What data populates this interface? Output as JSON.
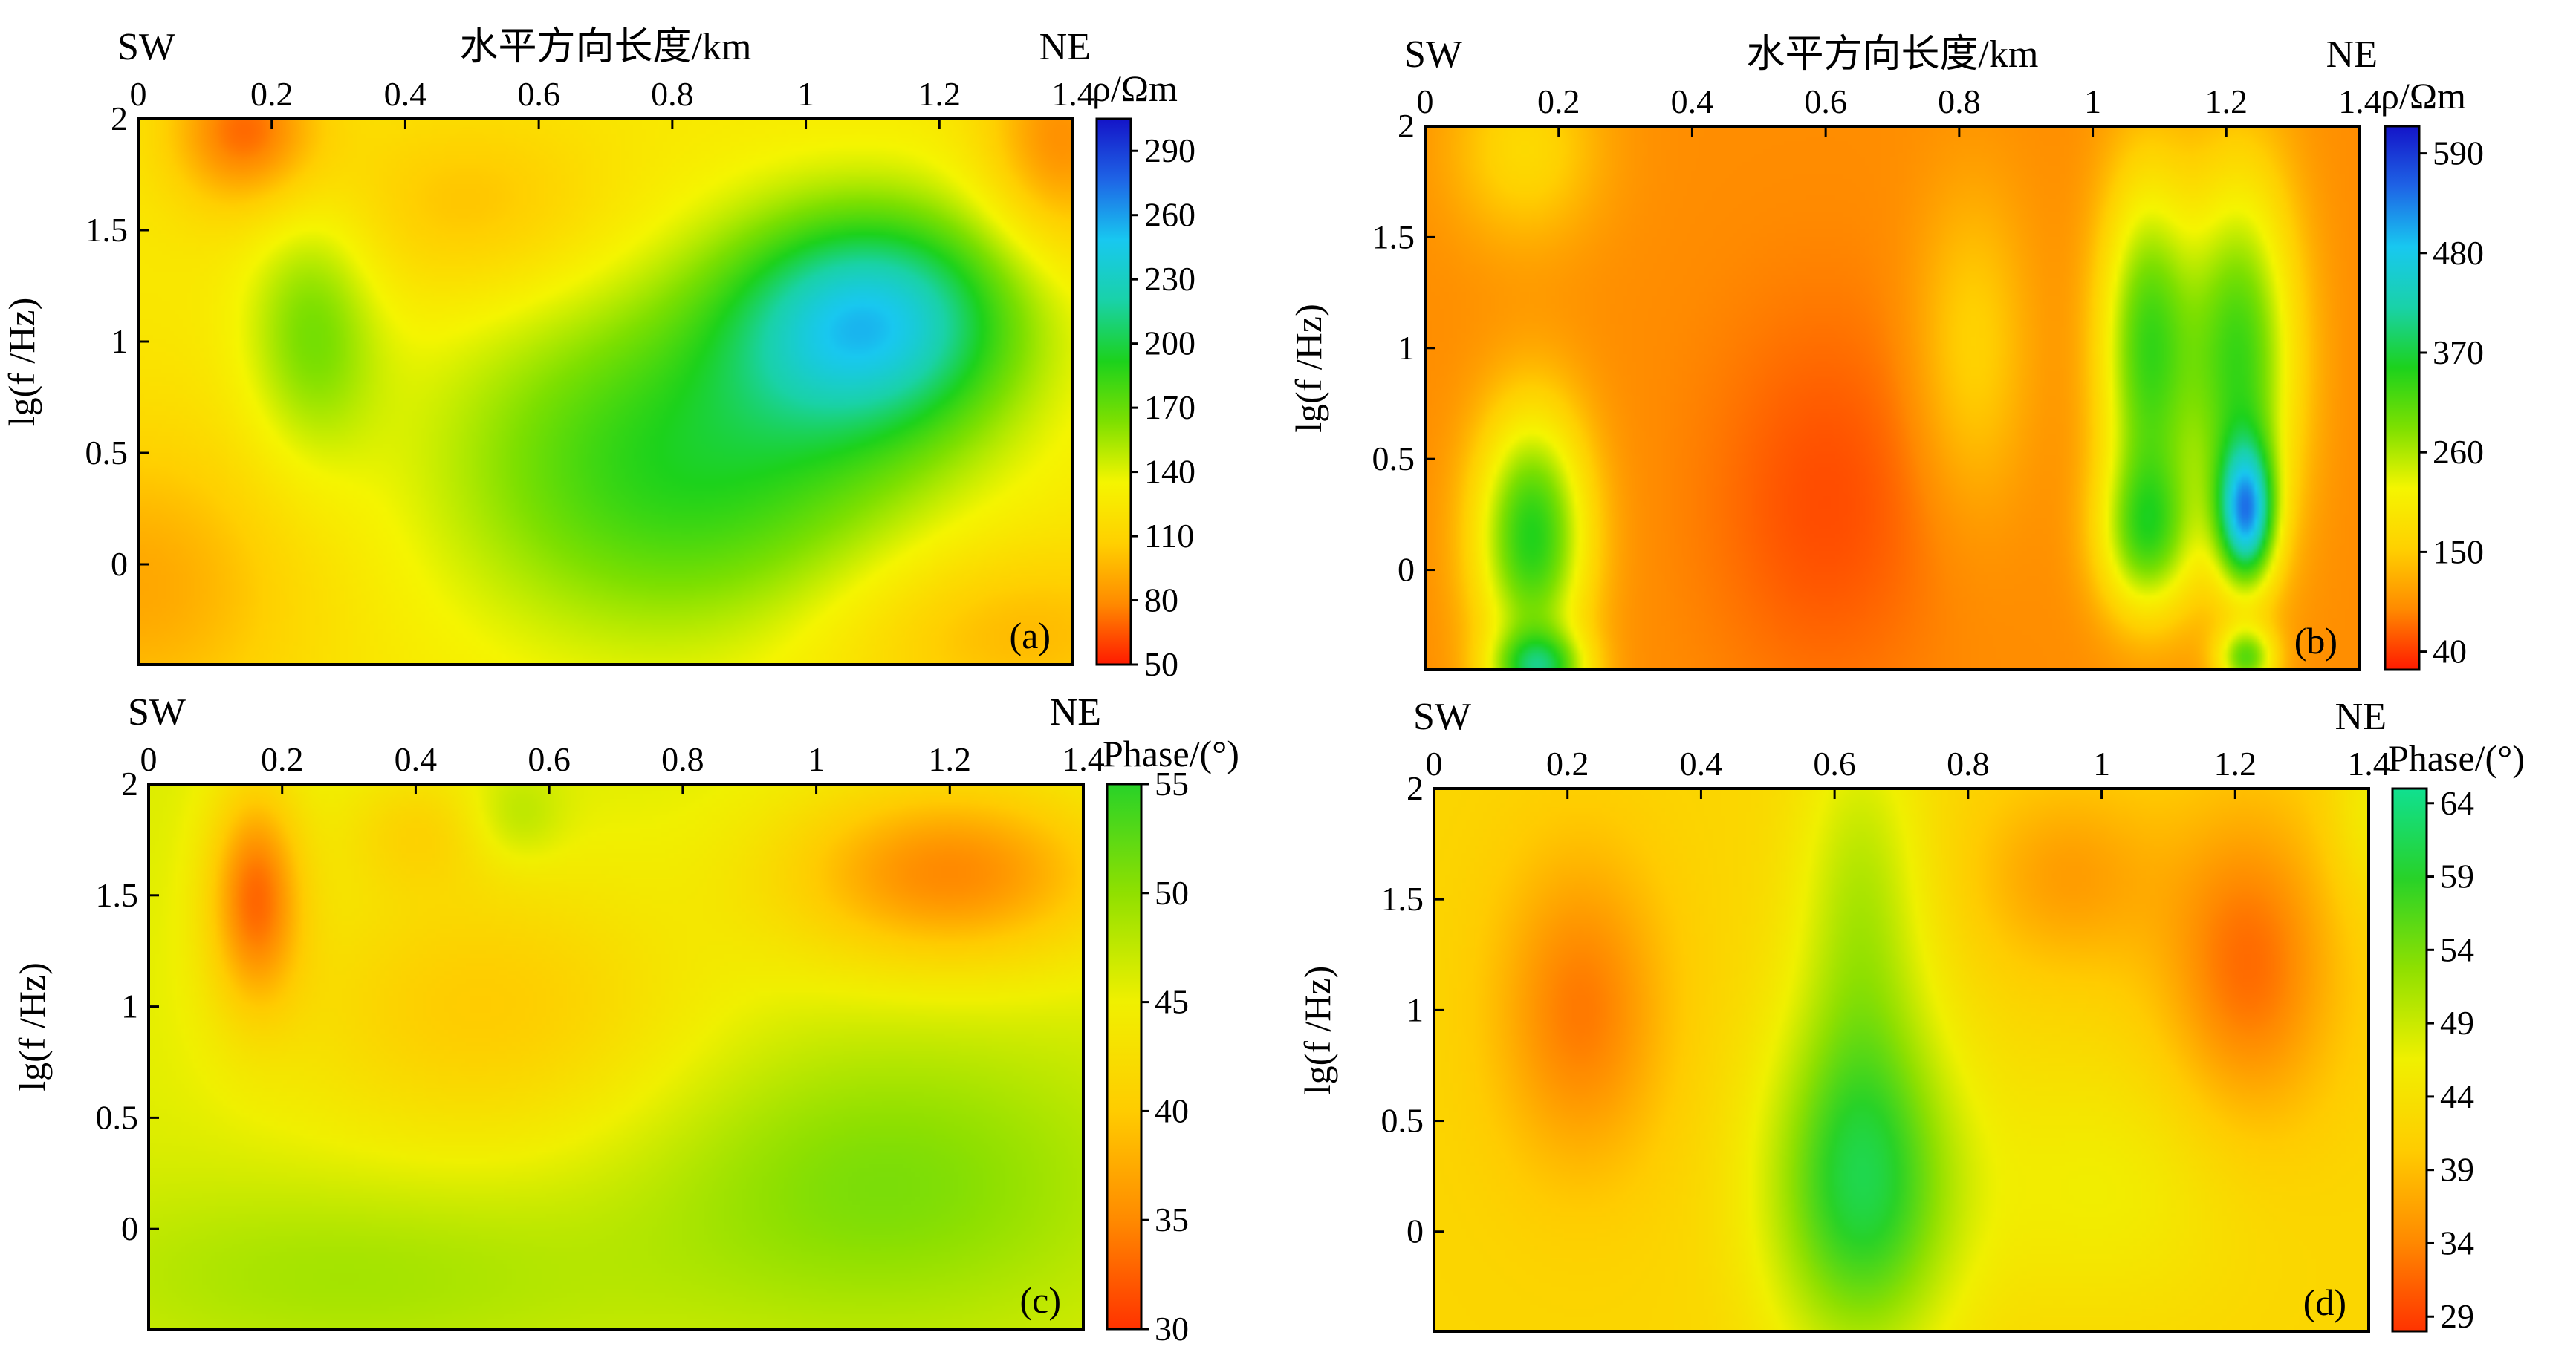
{
  "shared": {
    "top_axis_title": "水平方向长度/km",
    "sw": "SW",
    "ne": "NE",
    "ylabel": "lg(f /Hz)"
  },
  "chart_data": [
    {
      "id": "a",
      "type": "heatmap",
      "panel_label": "(a)",
      "show_top_title": true,
      "colorbar_title": "ρ/Ωm",
      "xlim": [
        0,
        1.4
      ],
      "ylim": [
        -0.45,
        2.0
      ],
      "xticks": [
        0,
        0.2,
        0.4,
        0.6,
        0.8,
        1,
        1.2,
        1.4
      ],
      "xtick_labels": [
        "0",
        "0.2",
        "0.4",
        "0.6",
        "0.8",
        "1",
        "1.2",
        "1.4"
      ],
      "yticks": [
        2,
        1.5,
        1,
        0.5,
        0
      ],
      "ytick_labels": [
        "2",
        "1.5",
        "1",
        "0.5",
        "0"
      ],
      "colorbar_ticks": [
        290,
        260,
        230,
        200,
        170,
        140,
        110,
        80,
        50
      ],
      "colorbar_range": [
        50,
        305
      ],
      "colormap": [
        "#ff1a00",
        "#ff8a00",
        "#ffd000",
        "#f5f500",
        "#7ee000",
        "#1cd21c",
        "#19d2a8",
        "#18c8f0",
        "#1e64e6",
        "#1414c8"
      ],
      "base": 125,
      "features": [
        {
          "x": 1.1,
          "y": 1.1,
          "sx": 0.15,
          "sy": 0.35,
          "a": 110
        },
        {
          "x": 0.82,
          "y": 0.45,
          "sx": 0.25,
          "sy": 0.55,
          "a": 65
        },
        {
          "x": 0.26,
          "y": 1.05,
          "sx": 0.07,
          "sy": 0.4,
          "a": 40
        },
        {
          "x": 0.16,
          "y": 1.95,
          "sx": 0.08,
          "sy": 0.25,
          "a": -55
        },
        {
          "x": 1.38,
          "y": 1.9,
          "sx": 0.08,
          "sy": 0.35,
          "a": -45
        },
        {
          "x": 0.5,
          "y": 1.6,
          "sx": 0.15,
          "sy": 0.3,
          "a": -25
        },
        {
          "x": 0.0,
          "y": -0.1,
          "sx": 0.18,
          "sy": 0.5,
          "a": -35
        },
        {
          "x": 1.3,
          "y": -0.3,
          "sx": 0.2,
          "sy": 0.3,
          "a": -30
        }
      ]
    },
    {
      "id": "b",
      "type": "heatmap",
      "panel_label": "(b)",
      "show_top_title": true,
      "colorbar_title": "ρ/Ωm",
      "xlim": [
        0,
        1.4
      ],
      "ylim": [
        -0.45,
        2.0
      ],
      "xticks": [
        0,
        0.2,
        0.4,
        0.6,
        0.8,
        1,
        1.2,
        1.4
      ],
      "xtick_labels": [
        "0",
        "0.2",
        "0.4",
        "0.6",
        "0.8",
        "1",
        "1.2",
        "1.4"
      ],
      "yticks": [
        2,
        1.5,
        1,
        0.5,
        0
      ],
      "ytick_labels": [
        "2",
        "1.5",
        "1",
        "0.5",
        "0"
      ],
      "colorbar_ticks": [
        590,
        480,
        370,
        260,
        150,
        40
      ],
      "colorbar_range": [
        20,
        620
      ],
      "colormap": [
        "#ff1a00",
        "#ff8a00",
        "#ffd000",
        "#f5f500",
        "#7ee000",
        "#1cd21c",
        "#19d2a8",
        "#18c8f0",
        "#1e64e6",
        "#1414c8"
      ],
      "base": 90,
      "features": [
        {
          "x": 0.16,
          "y": 0.15,
          "sx": 0.06,
          "sy": 0.4,
          "a": 260
        },
        {
          "x": 0.17,
          "y": -0.45,
          "sx": 0.05,
          "sy": 0.12,
          "a": 230
        },
        {
          "x": 1.08,
          "y": 1.0,
          "sx": 0.05,
          "sy": 0.55,
          "a": 230
        },
        {
          "x": 1.08,
          "y": 0.15,
          "sx": 0.05,
          "sy": 0.25,
          "a": 180
        },
        {
          "x": 1.22,
          "y": 0.95,
          "sx": 0.06,
          "sy": 0.6,
          "a": 240
        },
        {
          "x": 1.23,
          "y": 0.25,
          "sx": 0.03,
          "sy": 0.22,
          "a": 330
        },
        {
          "x": 1.23,
          "y": -0.4,
          "sx": 0.03,
          "sy": 0.1,
          "a": 200
        },
        {
          "x": 0.15,
          "y": 1.9,
          "sx": 0.08,
          "sy": 0.3,
          "a": 80
        },
        {
          "x": 0.82,
          "y": 1.0,
          "sx": 0.06,
          "sy": 0.5,
          "a": 70
        },
        {
          "x": 0.6,
          "y": 0.3,
          "sx": 0.12,
          "sy": 0.6,
          "a": -40
        }
      ]
    },
    {
      "id": "c",
      "type": "heatmap",
      "panel_label": "(c)",
      "show_top_title": false,
      "colorbar_title": "Phase/(°)",
      "xlim": [
        0,
        1.4
      ],
      "ylim": [
        -0.45,
        2.0
      ],
      "xticks": [
        0,
        0.2,
        0.4,
        0.6,
        0.8,
        1,
        1.2,
        1.4
      ],
      "xtick_labels": [
        "0",
        "0.2",
        "0.4",
        "0.6",
        "0.8",
        "1",
        "1.2",
        "1.4"
      ],
      "yticks": [
        2,
        1.5,
        1,
        0.5,
        0
      ],
      "ytick_labels": [
        "2",
        "1.5",
        "1",
        "0.5",
        "0"
      ],
      "colorbar_ticks": [
        55,
        50,
        45,
        40,
        35,
        30
      ],
      "colorbar_range": [
        30,
        55
      ],
      "colormap": [
        "#ff3300",
        "#ff8a00",
        "#ffcc00",
        "#f0f000",
        "#90e000",
        "#28d228"
      ],
      "base": 46,
      "features": [
        {
          "x": 0.16,
          "y": 1.5,
          "sx": 0.05,
          "sy": 0.35,
          "a": -12
        },
        {
          "x": 1.2,
          "y": 1.6,
          "sx": 0.18,
          "sy": 0.3,
          "a": -11
        },
        {
          "x": 0.5,
          "y": 1.0,
          "sx": 0.22,
          "sy": 0.45,
          "a": -6
        },
        {
          "x": 0.4,
          "y": 1.8,
          "sx": 0.08,
          "sy": 0.2,
          "a": -4
        },
        {
          "x": 0.55,
          "y": 1.85,
          "sx": 0.05,
          "sy": 0.15,
          "a": 3
        },
        {
          "x": 1.1,
          "y": 0.2,
          "sx": 0.25,
          "sy": 0.45,
          "a": 5
        },
        {
          "x": 0.3,
          "y": -0.2,
          "sx": 0.3,
          "sy": 0.3,
          "a": 3
        }
      ]
    },
    {
      "id": "d",
      "type": "heatmap",
      "panel_label": "(d)",
      "show_top_title": false,
      "colorbar_title": "Phase/(°)",
      "xlim": [
        0,
        1.4
      ],
      "ylim": [
        -0.45,
        2.0
      ],
      "xticks": [
        0,
        0.2,
        0.4,
        0.6,
        0.8,
        1,
        1.2,
        1.4
      ],
      "xtick_labels": [
        "0",
        "0.2",
        "0.4",
        "0.6",
        "0.8",
        "1",
        "1.2",
        "1.4"
      ],
      "yticks": [
        2,
        1.5,
        1,
        0.5,
        0
      ],
      "ytick_labels": [
        "2",
        "1.5",
        "1",
        "0.5",
        "0"
      ],
      "colorbar_ticks": [
        64,
        59,
        54,
        49,
        44,
        39,
        34,
        29
      ],
      "colorbar_range": [
        28,
        65
      ],
      "colormap": [
        "#ff3300",
        "#ff8a00",
        "#ffcc00",
        "#f0f000",
        "#90e000",
        "#28d228",
        "#10e090"
      ],
      "base": 42,
      "features": [
        {
          "x": 0.64,
          "y": 0.2,
          "sx": 0.1,
          "sy": 0.55,
          "a": 18
        },
        {
          "x": 0.64,
          "y": 1.5,
          "sx": 0.07,
          "sy": 0.6,
          "a": 8
        },
        {
          "x": 0.22,
          "y": 1.0,
          "sx": 0.09,
          "sy": 0.5,
          "a": -9
        },
        {
          "x": 1.22,
          "y": 1.2,
          "sx": 0.09,
          "sy": 0.5,
          "a": -10
        },
        {
          "x": 0.95,
          "y": 1.6,
          "sx": 0.1,
          "sy": 0.3,
          "a": -6
        },
        {
          "x": 1.4,
          "y": 1.9,
          "sx": 0.04,
          "sy": 0.3,
          "a": 4
        },
        {
          "x": 1.0,
          "y": 0.2,
          "sx": 0.15,
          "sy": 0.4,
          "a": 4
        }
      ]
    }
  ]
}
